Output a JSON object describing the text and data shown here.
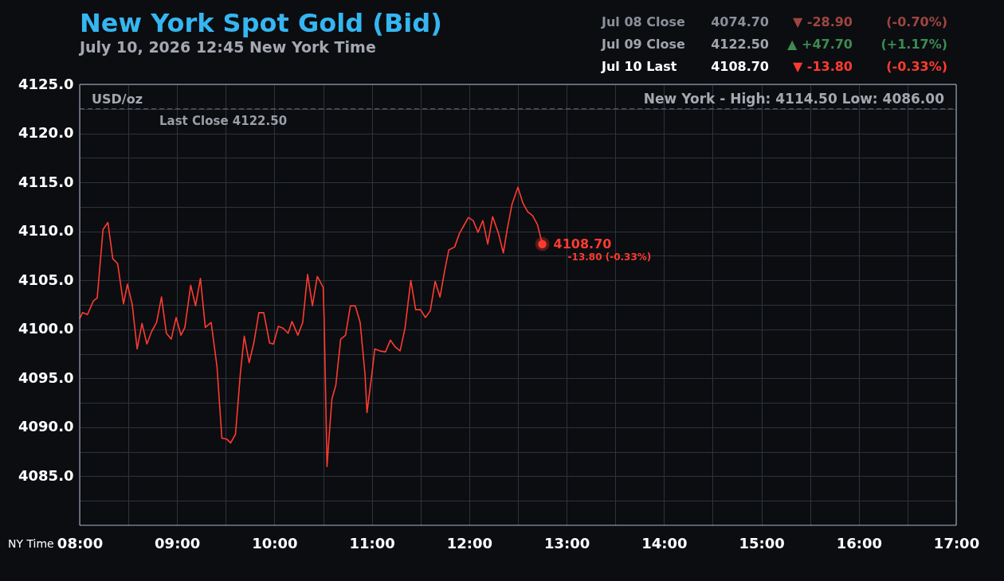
{
  "chart_data": {
    "type": "line",
    "title": "New York Spot Gold (Bid)",
    "subtitle": "July 10, 2026 12:45 New York Time",
    "xlabel": "NY Time",
    "annotations": [
      "USD/oz",
      "New York - High: 4114.50   Low: 4086.00",
      "Jul 08 Close",
      "4074.70",
      "▼  -28.90",
      "(-0.70%)",
      "Jul 09 Close",
      "4122.50",
      "▲ +47.70",
      "(+1.17%)",
      "Jul 10 Last",
      "4108.70",
      "▼  -13.80",
      "(-0.33%)",
      {
        "text": "4108.70",
        "x": 12.75,
        "y": 4108.7
      },
      {
        "text": "-13.80 (-0.33%)",
        "x": 12.75,
        "y": 4108.7
      }
    ],
    "x": [
      8.0,
      8.03,
      8.08,
      8.14,
      8.18,
      8.24,
      8.29,
      8.34,
      8.39,
      8.45,
      8.49,
      8.54,
      8.59,
      8.64,
      8.69,
      8.74,
      8.79,
      8.84,
      8.89,
      8.94,
      8.99,
      9.04,
      9.08,
      9.14,
      9.19,
      9.24,
      9.29,
      9.35,
      9.41,
      9.46,
      9.51,
      9.55,
      9.6,
      9.65,
      9.69,
      9.74,
      9.79,
      9.84,
      9.89,
      9.95,
      9.99,
      10.04,
      10.09,
      10.14,
      10.18,
      10.24,
      10.29,
      10.34,
      10.39,
      10.44,
      10.5,
      10.51,
      10.54,
      10.56,
      10.59,
      10.63,
      10.68,
      10.73,
      10.78,
      10.83,
      10.88,
      10.93,
      10.95,
      11.0,
      11.03,
      11.08,
      11.14,
      11.19,
      11.24,
      11.29,
      11.34,
      11.4,
      11.45,
      11.5,
      11.55,
      11.6,
      11.65,
      11.7,
      11.75,
      11.79,
      11.85,
      11.9,
      11.94,
      11.99,
      12.04,
      12.09,
      12.14,
      12.19,
      12.24,
      12.3,
      12.35,
      12.39,
      12.44,
      12.5,
      12.55,
      12.6,
      12.65,
      12.7,
      12.75
    ],
    "series": [
      {
        "color": "#ff3b30",
        "values": [
          4101.1,
          4101.7,
          4101.5,
          4102.9,
          4103.2,
          4110.2,
          4110.9,
          4107.2,
          4106.7,
          4102.6,
          4104.6,
          4102.5,
          4098.0,
          4100.6,
          4098.5,
          4099.8,
          4100.7,
          4103.3,
          4099.6,
          4099.0,
          4101.2,
          4099.4,
          4100.2,
          4104.5,
          4102.4,
          4105.2,
          4100.2,
          4100.7,
          4096.2,
          4088.9,
          4088.8,
          4088.4,
          4089.3,
          4095.5,
          4099.3,
          4096.6,
          4098.7,
          4101.7,
          4101.7,
          4098.6,
          4098.5,
          4100.3,
          4100.1,
          4099.6,
          4100.8,
          4099.4,
          4100.7,
          4105.6,
          4102.4,
          4105.4,
          4104.3,
          4101.1,
          4086.0,
          4088.9,
          4092.9,
          4094.3,
          4099.0,
          4099.4,
          4102.4,
          4102.4,
          4100.7,
          4095.4,
          4091.5,
          4095.4,
          4098.0,
          4097.8,
          4097.7,
          4098.9,
          4098.2,
          4097.8,
          4100.1,
          4105.0,
          4102.0,
          4102.0,
          4101.2,
          4101.9,
          4104.9,
          4103.3,
          4106.1,
          4108.1,
          4108.4,
          4109.8,
          4110.5,
          4111.4,
          4111.1,
          4109.9,
          4111.1,
          4108.7,
          4111.5,
          4109.8,
          4107.8,
          4110.2,
          4112.8,
          4114.5,
          4112.9,
          4112.0,
          4111.6,
          4110.7,
          4108.7
        ]
      }
    ],
    "xlim": [
      8,
      17
    ],
    "xticks": [
      {
        "value": 8,
        "label": "08:00"
      },
      {
        "value": 8.5,
        "label": null
      },
      {
        "value": 9,
        "label": "09:00"
      },
      {
        "value": 9.5,
        "label": null
      },
      {
        "value": 10,
        "label": "10:00"
      },
      {
        "value": 10.5,
        "label": null
      },
      {
        "value": 11,
        "label": "11:00"
      },
      {
        "value": 11.5,
        "label": null
      },
      {
        "value": 12,
        "label": "12:00"
      },
      {
        "value": 12.5,
        "label": null
      },
      {
        "value": 13,
        "label": "13:00"
      },
      {
        "value": 13.5,
        "label": null
      },
      {
        "value": 14,
        "label": "14:00"
      },
      {
        "value": 14.5,
        "label": null
      },
      {
        "value": 15,
        "label": "15:00"
      },
      {
        "value": 15.5,
        "label": null
      },
      {
        "value": 16,
        "label": "16:00"
      },
      {
        "value": 16.5,
        "label": null
      },
      {
        "value": 17,
        "label": "17:00"
      }
    ],
    "ylim": [
      4080,
      4125
    ],
    "yticks": [
      {
        "value": 4082.5,
        "label": null
      },
      {
        "value": 4085,
        "label": "4085.0"
      },
      {
        "value": 4087.5,
        "label": null
      },
      {
        "value": 4090,
        "label": "4090.0"
      },
      {
        "value": 4092.5,
        "label": null
      },
      {
        "value": 4095,
        "label": "4095.0"
      },
      {
        "value": 4097.5,
        "label": null
      },
      {
        "value": 4100,
        "label": "4100.0"
      },
      {
        "value": 4102.5,
        "label": null
      },
      {
        "value": 4105,
        "label": "4105.0"
      },
      {
        "value": 4107.5,
        "label": null
      },
      {
        "value": 4110,
        "label": "4110.0"
      },
      {
        "value": 4112.5,
        "label": null
      },
      {
        "value": 4115,
        "label": "4115.0"
      },
      {
        "value": 4117.5,
        "label": null
      },
      {
        "value": 4120,
        "label": "4120.0"
      },
      {
        "value": 4122.5,
        "label": null
      },
      {
        "value": 4125,
        "label": "4125.0"
      }
    ],
    "ref_lines": [
      {
        "axis": "y",
        "value": 4122.5,
        "label": "Last Close 4122.50",
        "color": "#6a6e78",
        "line_style": "dashed"
      }
    ],
    "grid": true
  }
}
